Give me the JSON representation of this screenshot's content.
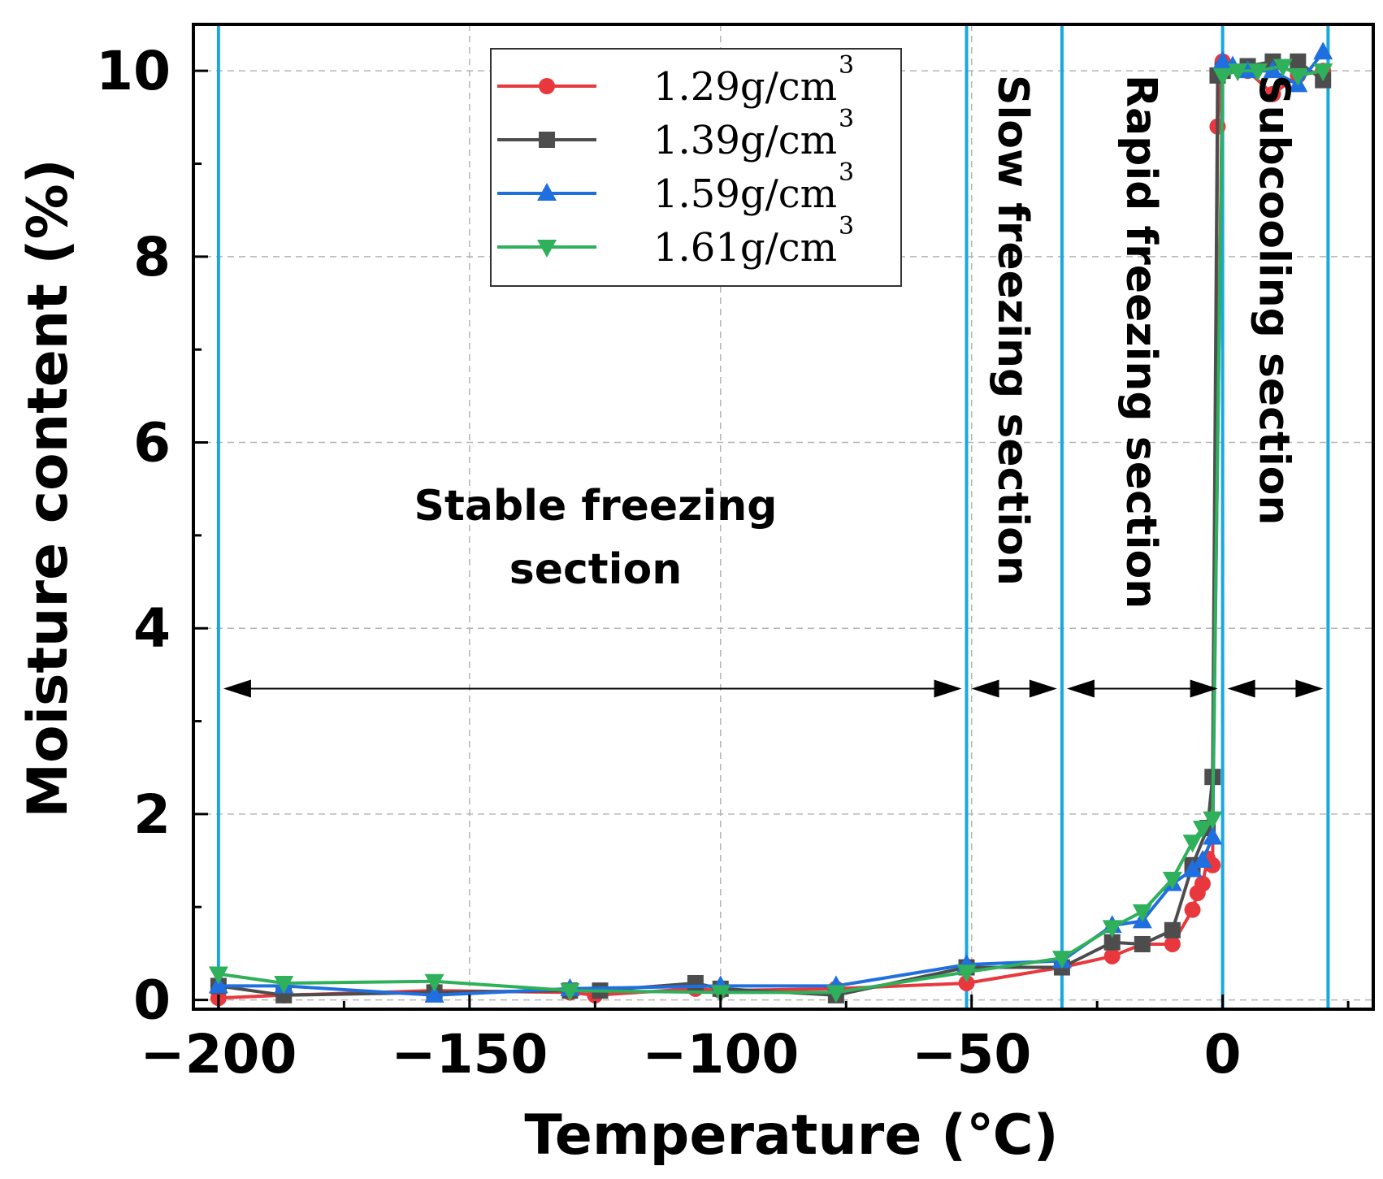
{
  "chart_data": {
    "type": "line",
    "xlabel": "Temperature (℃)",
    "ylabel": "Moisture content (%)",
    "xlim": [
      -205,
      30
    ],
    "ylim": [
      -0.1,
      10.5
    ],
    "x_ticks": [
      -200,
      -150,
      -100,
      -50,
      0
    ],
    "x_tick_labels": [
      "−200",
      "−150",
      "−100",
      "−50",
      "0"
    ],
    "y_ticks": [
      0,
      2,
      4,
      6,
      8,
      10
    ],
    "y_tick_labels": [
      "0",
      "2",
      "4",
      "6",
      "8",
      "10"
    ],
    "grid": true,
    "legend_position": "top-center",
    "boundaries": [
      -200,
      -51,
      -32,
      0,
      21
    ],
    "sections": [
      {
        "lines": [
          "Stable freezing",
          "section"
        ],
        "x_start": -200,
        "x_end": -51,
        "orientation": "horizontal"
      },
      {
        "lines": [
          "Slow freezing section"
        ],
        "x_start": -51,
        "x_end": -32,
        "orientation": "vertical"
      },
      {
        "lines": [
          "Rapid freezing section"
        ],
        "x_start": -32,
        "x_end": 0,
        "orientation": "vertical"
      },
      {
        "lines": [
          "Subcooling section"
        ],
        "x_start": 0,
        "x_end": 21,
        "orientation": "vertical"
      }
    ],
    "arrow_y": 3.35,
    "series": [
      {
        "name": "1.29g/cm",
        "sup": "3",
        "color": "#e8383d",
        "marker": "circle",
        "x": [
          -200,
          -187,
          -157,
          -130,
          -125,
          -105,
          -100,
          -77,
          -51,
          -32,
          -22,
          -16,
          -10,
          -6,
          -5,
          -4,
          -3,
          -2,
          -1,
          0,
          0.5,
          5,
          10,
          15,
          20
        ],
        "y": [
          0.02,
          0.05,
          0.1,
          0.08,
          0.05,
          0.12,
          0.1,
          0.12,
          0.18,
          0.35,
          0.47,
          0.6,
          0.6,
          0.97,
          1.15,
          1.25,
          1.52,
          1.45,
          9.4,
          10.1,
          10.05,
          10.0,
          9.75,
          9.95,
          10.0
        ]
      },
      {
        "name": "1.39g/cm",
        "sup": "3",
        "color": "#4d4d4d",
        "marker": "square",
        "x": [
          -200,
          -187,
          -157,
          -130,
          -124,
          -105,
          -100,
          -77,
          -51,
          -32,
          -22,
          -16,
          -10,
          -6,
          -3,
          -2,
          -1,
          0,
          5,
          10,
          15,
          20
        ],
        "y": [
          0.15,
          0.05,
          0.08,
          0.1,
          0.1,
          0.18,
          0.12,
          0.05,
          0.35,
          0.35,
          0.62,
          0.6,
          0.75,
          1.45,
          1.85,
          2.4,
          9.95,
          10.0,
          10.05,
          10.1,
          10.1,
          9.9
        ]
      },
      {
        "name": "1.59g/cm",
        "sup": "3",
        "color": "#1f6fe0",
        "marker": "triangle-up",
        "x": [
          -200,
          -187,
          -157,
          -130,
          -100,
          -77,
          -51,
          -32,
          -22,
          -16,
          -10,
          -6,
          -4,
          -2,
          0,
          2,
          5,
          10,
          15,
          20
        ],
        "y": [
          0.15,
          0.15,
          0.05,
          0.12,
          0.15,
          0.15,
          0.38,
          0.42,
          0.8,
          0.85,
          1.25,
          1.4,
          1.5,
          1.75,
          10.1,
          10.05,
          10.0,
          10.0,
          9.85,
          10.2
        ]
      },
      {
        "name": "1.61g/cm",
        "sup": "3",
        "color": "#2fb05a",
        "marker": "triangle-down",
        "x": [
          -200,
          -187,
          -157,
          -130,
          -100,
          -77,
          -51,
          -32,
          -22,
          -16,
          -10,
          -6,
          -4,
          -2,
          0,
          3,
          7,
          12,
          15,
          20
        ],
        "y": [
          0.28,
          0.18,
          0.2,
          0.1,
          0.08,
          0.08,
          0.3,
          0.45,
          0.78,
          0.95,
          1.3,
          1.7,
          1.85,
          1.95,
          9.95,
          10.0,
          10.0,
          10.05,
          9.95,
          10.0
        ]
      }
    ]
  }
}
